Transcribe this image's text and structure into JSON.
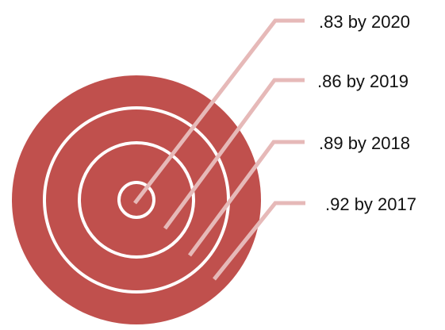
{
  "colors": {
    "target": "#c0504d",
    "ring": "#ffffff",
    "leader": "#e6b9b8"
  },
  "targets": [
    {
      "label": ".83 by 2020"
    },
    {
      "label": ".86 by 2019"
    },
    {
      "label": ".89 by 2018"
    },
    {
      "label": ".92 by 2017"
    }
  ]
}
